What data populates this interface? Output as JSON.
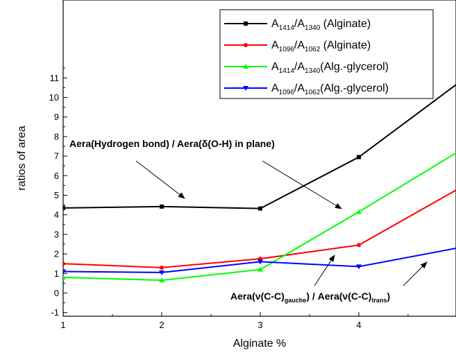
{
  "chart_data": {
    "type": "line",
    "xlabel": "Alginate %",
    "ylabel": "ratios of area",
    "xlim": [
      1,
      5
    ],
    "ylim": [
      -1,
      11.5
    ],
    "x_ticks": [
      "1",
      "2",
      "3",
      "4"
    ],
    "y_ticks": [
      "-1",
      "0",
      "1",
      "2",
      "3",
      "4",
      "5",
      "6",
      "7",
      "8",
      "9",
      "10",
      "11"
    ],
    "grid": false,
    "legend_position": "top-right",
    "series": [
      {
        "name": "A1414/A1340 (Alginate)",
        "label_parts": {
          "a": "A",
          "s1": "1414",
          "b": "/A",
          "s2": "1340",
          "c": " (Alginate)"
        },
        "color": "#000000",
        "marker": "square",
        "x": [
          1,
          2,
          3,
          4,
          5
        ],
        "y": [
          4.35,
          4.42,
          4.32,
          6.95,
          10.7
        ]
      },
      {
        "name": "A1096/A1062 (Alginate)",
        "label_parts": {
          "a": "A",
          "s1": "1096",
          "b": "/A",
          "s2": "1062",
          "c": " (Alginate)"
        },
        "color": "#ff0000",
        "marker": "circle",
        "x": [
          1,
          2,
          3,
          4,
          5
        ],
        "y": [
          1.5,
          1.3,
          1.75,
          2.45,
          5.3
        ]
      },
      {
        "name": "A1414/A1340(Alg.-glycerol)",
        "label_parts": {
          "a": "A",
          "s1": "1414",
          "b": "/A",
          "s2": "1340",
          "c": "(Alg.-glycerol)"
        },
        "color": "#00ff00",
        "marker": "triangle-up",
        "x": [
          1,
          2,
          3,
          4,
          5
        ],
        "y": [
          0.8,
          0.65,
          1.2,
          4.15,
          7.2
        ]
      },
      {
        "name": "A1096/A1062(Alg.-glycerol)",
        "label_parts": {
          "a": "A",
          "s1": "1096",
          "b": "/A",
          "s2": "1062",
          "c": "(Alg.-glycerol)"
        },
        "color": "#0000ff",
        "marker": "triangle-down",
        "x": [
          1,
          2,
          3,
          4,
          5
        ],
        "y": [
          1.1,
          1.05,
          1.6,
          1.35,
          2.3
        ]
      }
    ],
    "annotations": [
      {
        "text": "Aera(Hydrogen bond) / Aera(δ(O-H) in plane)"
      },
      {
        "part1": "Aera(ν(C-C)",
        "sub1": "gauche",
        "part2": ") / Aera(ν(C-C)",
        "sub2": "trans",
        "part3": ")"
      }
    ]
  }
}
